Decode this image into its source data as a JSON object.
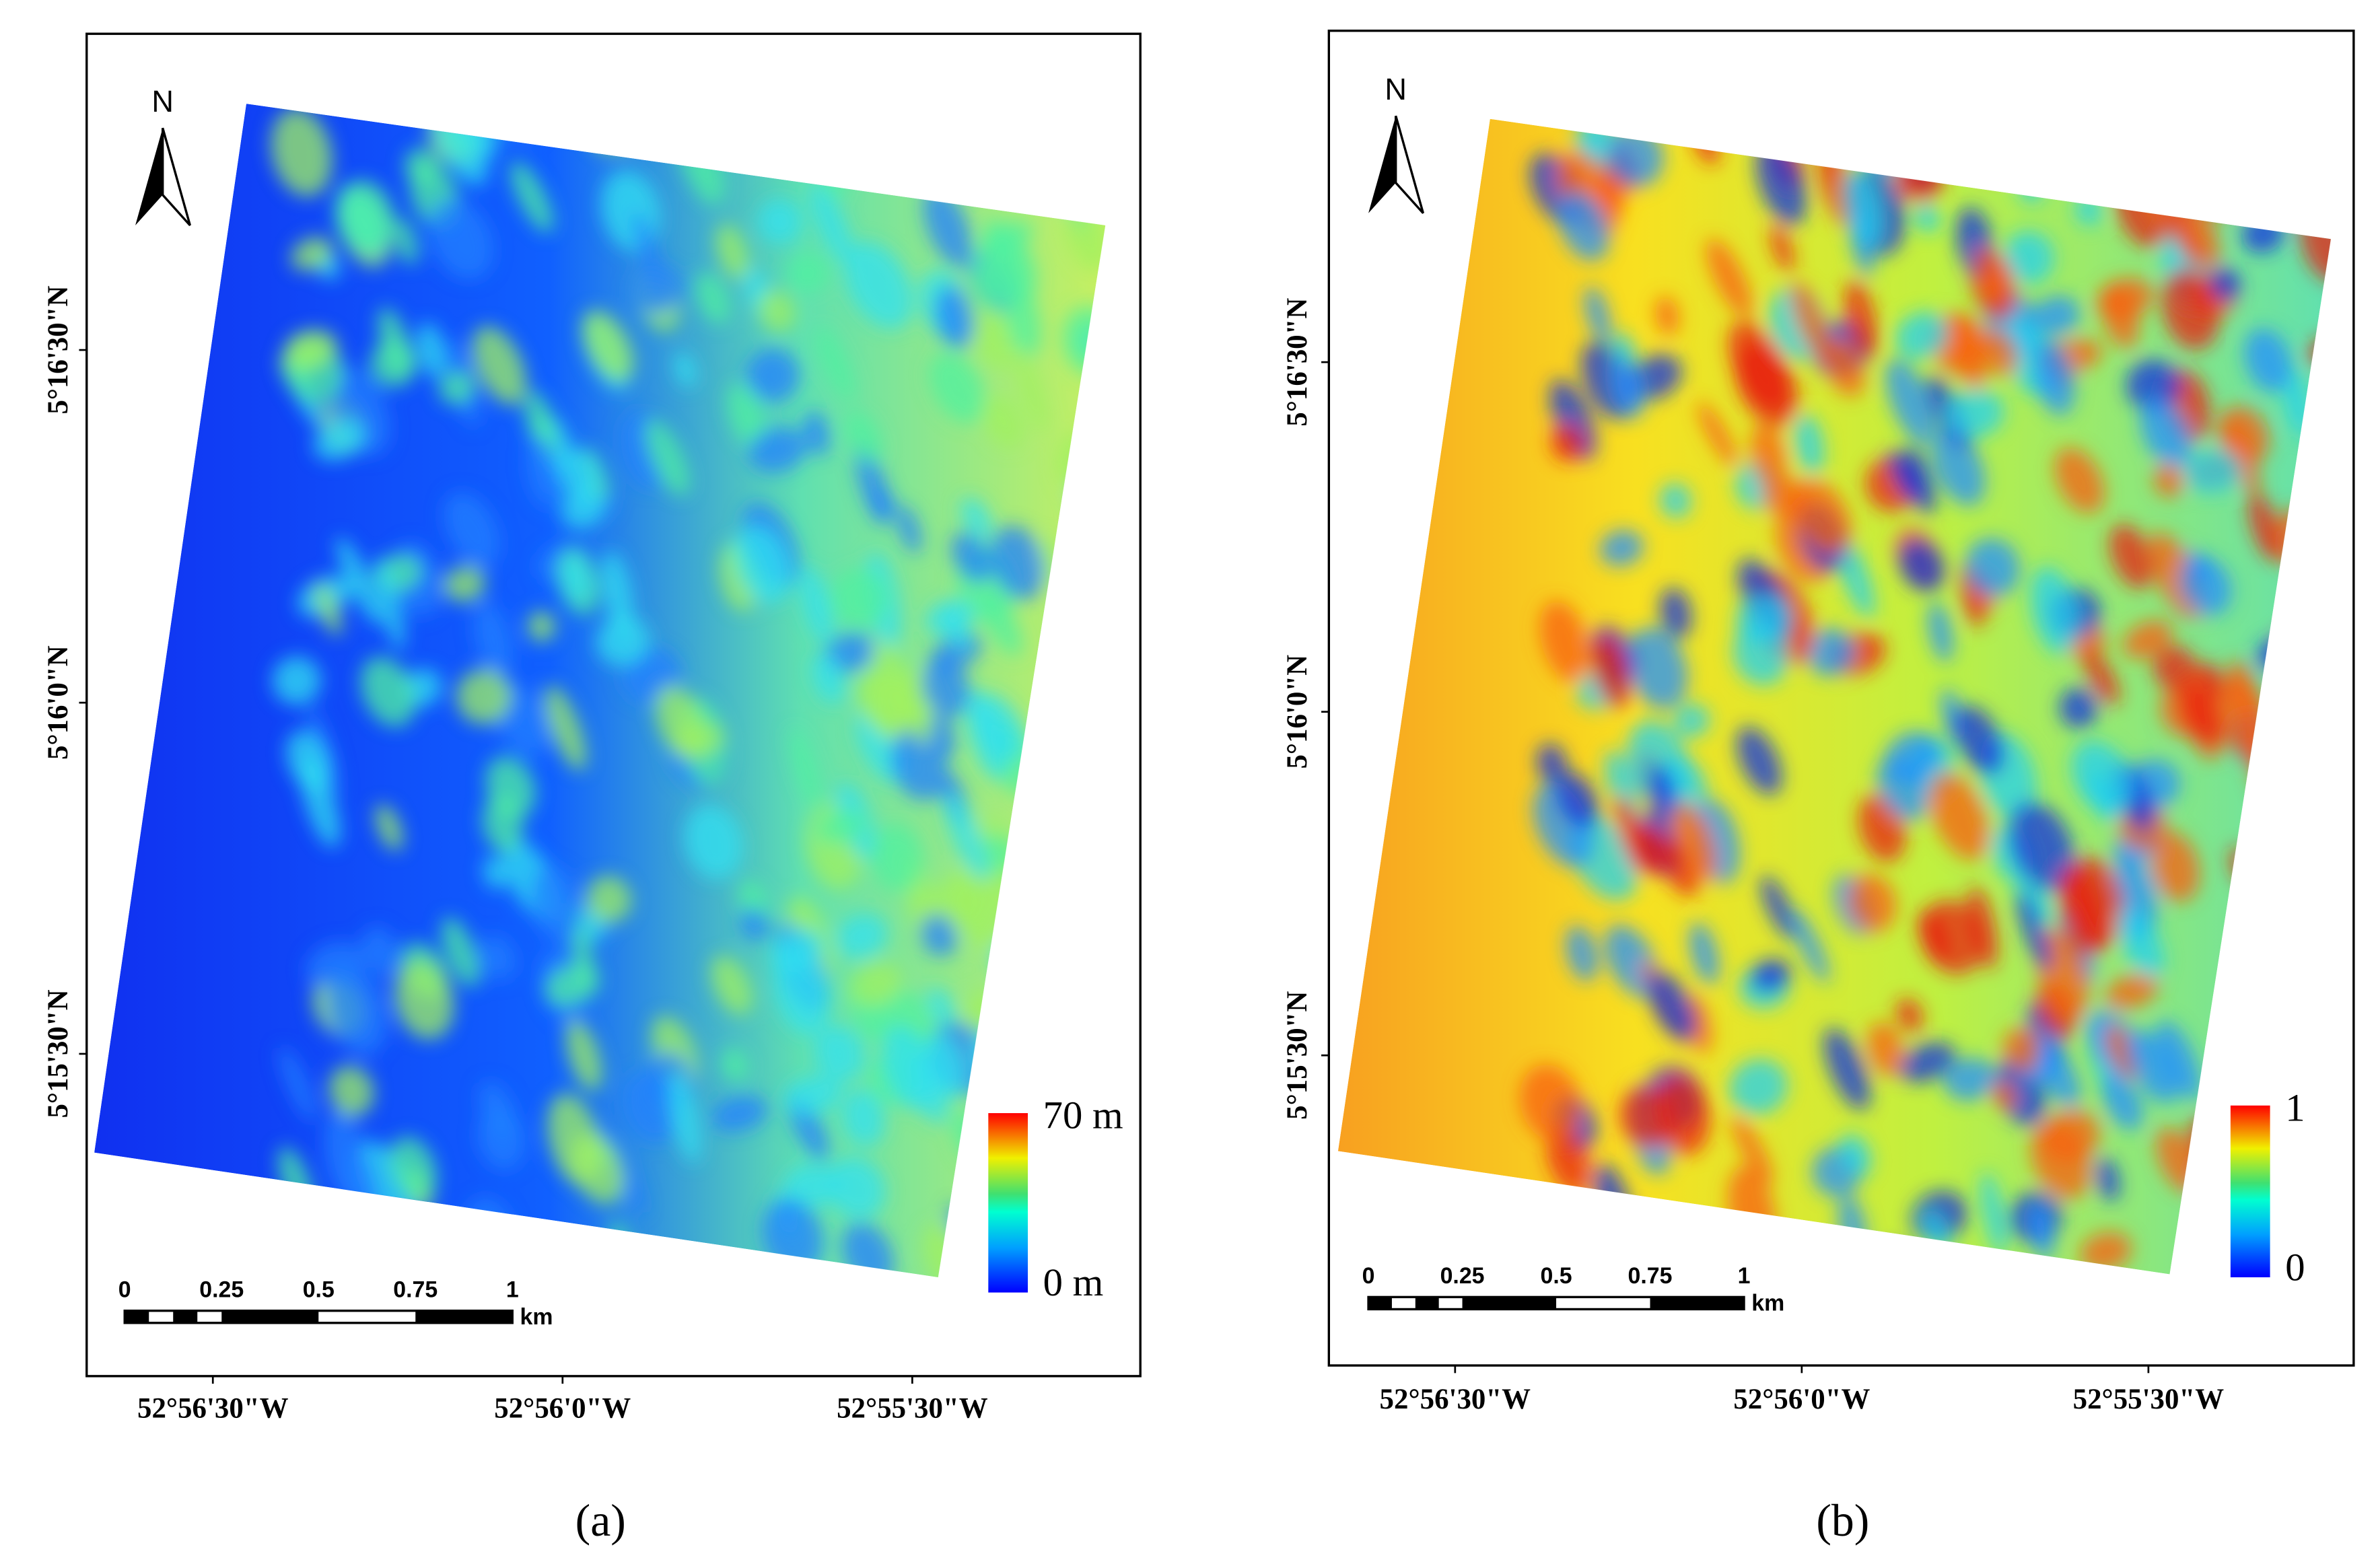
{
  "panels": [
    {
      "caption": "(a)",
      "north": "N",
      "latitude_labels": [
        "5°16'30\"N",
        "5°16'0\"N",
        "5°15'30\"N"
      ],
      "longitude_labels": [
        "52°56'30\"W",
        "52°56'0\"W",
        "52°55'30\"W"
      ],
      "scale_bar": {
        "labels": [
          "0",
          "0.25",
          "0.5",
          "0.75",
          "1"
        ],
        "unit": "km"
      },
      "legend": {
        "max_label": "70 m",
        "min_label": "0 m"
      }
    },
    {
      "caption": "(b)",
      "north": "N",
      "latitude_labels": [
        "5°16'30\"N",
        "5°16'0\"N",
        "5°15'30\"N"
      ],
      "longitude_labels": [
        "52°56'30\"W",
        "52°56'0\"W",
        "52°55'30\"W"
      ],
      "scale_bar": {
        "labels": [
          "0",
          "0.25",
          "0.5",
          "0.75",
          "1"
        ],
        "unit": "km"
      },
      "legend": {
        "max_label": "1",
        "min_label": "0"
      }
    }
  ]
}
